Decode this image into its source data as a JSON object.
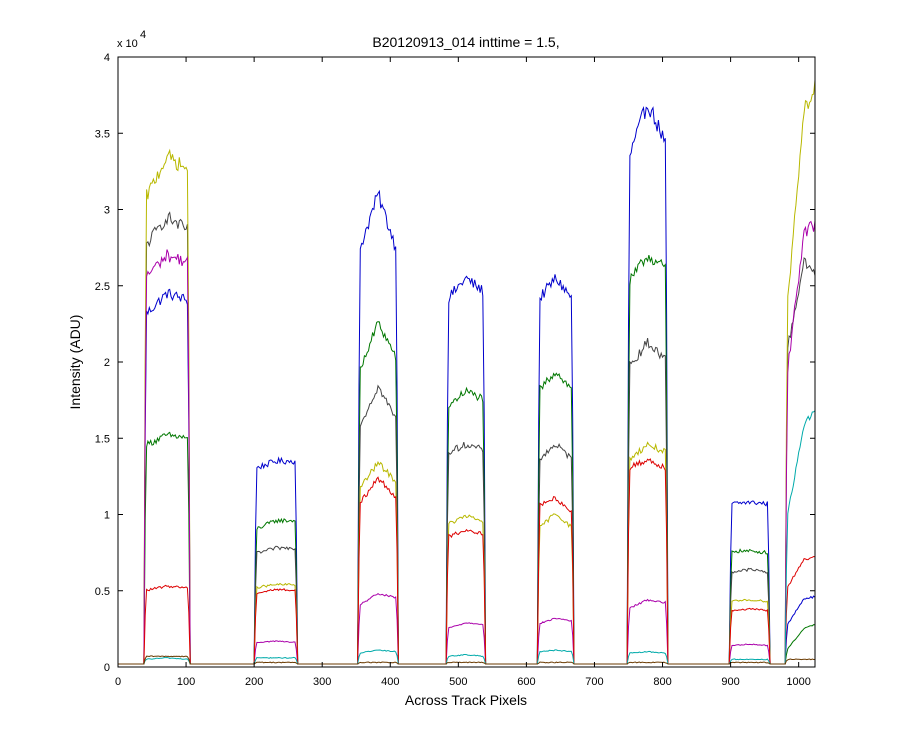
{
  "chart_data": {
    "type": "line",
    "title": "B20120913_014 inttime = 1.5,",
    "xlabel": "Across Track Pixels",
    "ylabel": "Intensity (ADU)",
    "xlim": [
      0,
      1024
    ],
    "ylim": [
      0,
      40000
    ],
    "y_multiplier": {
      "base": "x 10",
      "exponent": "4"
    },
    "x_ticks": [
      0,
      100,
      200,
      300,
      400,
      500,
      600,
      700,
      800,
      900,
      1000
    ],
    "x_tick_labels": [
      "0",
      "100",
      "200",
      "300",
      "400",
      "500",
      "600",
      "700",
      "800",
      "900",
      "1000"
    ],
    "y_ticks": [
      0,
      5000,
      10000,
      15000,
      20000,
      25000,
      30000,
      35000,
      40000
    ],
    "y_tick_labels": [
      "0",
      "0.5",
      "1",
      "1.5",
      "2",
      "2.5",
      "3",
      "3.5",
      "4"
    ],
    "grid": false,
    "background": 200,
    "segments": [
      {
        "rise": 38,
        "fall": 106,
        "last": false
      },
      {
        "rise": 200,
        "fall": 264,
        "last": false
      },
      {
        "rise": 352,
        "fall": 412,
        "last": false
      },
      {
        "rise": 482,
        "fall": 540,
        "last": false
      },
      {
        "rise": 616,
        "fall": 670,
        "last": false
      },
      {
        "rise": 748,
        "fall": 808,
        "last": false
      },
      {
        "rise": 898,
        "fall": 958,
        "last": false
      },
      {
        "rise": 980,
        "fall": 1024,
        "last": true
      }
    ],
    "series": [
      {
        "color": "#0000cc",
        "levels": [
          [
            23000,
            24500,
            24000
          ],
          [
            13000,
            13500,
            13500
          ],
          [
            27000,
            31000,
            27000
          ],
          [
            24000,
            25500,
            24500
          ],
          [
            24000,
            25500,
            24000
          ],
          [
            33000,
            37000,
            34000
          ],
          [
            10700,
            10800,
            10700
          ],
          [
            2500,
            4500,
            4600
          ]
        ]
      },
      {
        "color": "#007700",
        "levels": [
          [
            14500,
            15200,
            15000
          ],
          [
            9000,
            9600,
            9600
          ],
          [
            19000,
            22600,
            20000
          ],
          [
            17000,
            18100,
            17500
          ],
          [
            18000,
            19400,
            18000
          ],
          [
            25000,
            27000,
            26000
          ],
          [
            7600,
            7600,
            7500
          ],
          [
            1000,
            2500,
            2800
          ]
        ]
      },
      {
        "color": "#444444",
        "levels": [
          [
            27500,
            29500,
            28500
          ],
          [
            7400,
            7800,
            7800
          ],
          [
            15500,
            18400,
            16000
          ],
          [
            14000,
            14600,
            14200
          ],
          [
            13500,
            14600,
            13500
          ],
          [
            19500,
            21300,
            20000
          ],
          [
            6200,
            6400,
            6200
          ],
          [
            20000,
            26500,
            26000
          ]
        ]
      },
      {
        "color": "#b8b800",
        "levels": [
          [
            30500,
            33500,
            32500
          ],
          [
            5200,
            5400,
            5400
          ],
          [
            11500,
            13400,
            12000
          ],
          [
            9300,
            9900,
            9500
          ],
          [
            9000,
            10100,
            9000
          ],
          [
            13500,
            14600,
            14000
          ],
          [
            4300,
            4400,
            4300
          ],
          [
            22000,
            36500,
            38000
          ]
        ]
      },
      {
        "color": "#aa00aa",
        "levels": [
          [
            25500,
            27000,
            26500
          ],
          [
            1600,
            1700,
            1600
          ],
          [
            4000,
            4800,
            4500
          ],
          [
            2500,
            2900,
            2800
          ],
          [
            2800,
            3200,
            3000
          ],
          [
            3800,
            4400,
            4200
          ],
          [
            1400,
            1500,
            1400
          ],
          [
            18000,
            28500,
            29000
          ]
        ]
      },
      {
        "color": "#dd0000",
        "levels": [
          [
            5000,
            5300,
            5200
          ],
          [
            4800,
            5100,
            5000
          ],
          [
            10500,
            12400,
            11000
          ],
          [
            8500,
            9000,
            8700
          ],
          [
            10500,
            11100,
            10000
          ],
          [
            13000,
            13600,
            13000
          ],
          [
            3700,
            3800,
            3700
          ],
          [
            5000,
            7000,
            7200
          ]
        ]
      },
      {
        "color": "#00aaaa",
        "levels": [
          [
            500,
            600,
            500
          ],
          [
            600,
            600,
            600
          ],
          [
            900,
            1100,
            1000
          ],
          [
            700,
            800,
            700
          ],
          [
            1000,
            1100,
            1000
          ],
          [
            900,
            1000,
            900
          ],
          [
            500,
            500,
            500
          ],
          [
            9000,
            15800,
            16800
          ]
        ]
      },
      {
        "color": "#6a3a00",
        "levels": [
          [
            700,
            700,
            700
          ],
          [
            300,
            300,
            300
          ],
          [
            300,
            300,
            300
          ],
          [
            300,
            300,
            300
          ],
          [
            300,
            300,
            300
          ],
          [
            300,
            300,
            300
          ],
          [
            300,
            300,
            300
          ],
          [
            500,
            500,
            500
          ]
        ]
      }
    ]
  }
}
